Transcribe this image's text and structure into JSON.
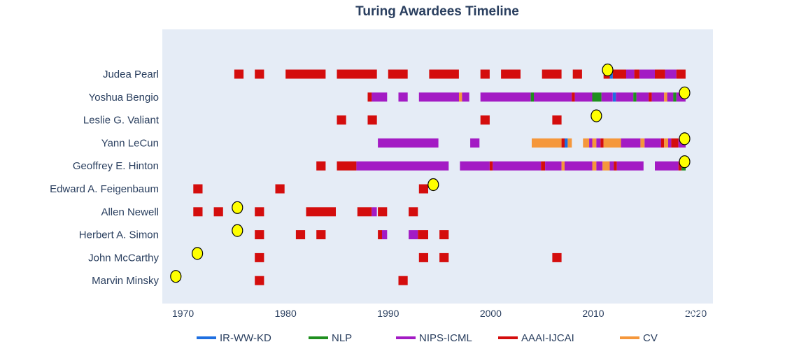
{
  "chart_data": {
    "type": "timeline",
    "title": "Turing Awardees Timeline",
    "xlim": [
      1968,
      2023
    ],
    "x_ticks": [
      "1970",
      "1980",
      "1990",
      "2000",
      "2010",
      "2020"
    ],
    "grid": false,
    "legend_position": "bottom",
    "colors": {
      "IR-WW-KD": "#1f6fe0",
      "NLP": "#1f8f1f",
      "NIPS-ICML": "#a31bc4",
      "AAAI-IJCAI": "#d40d0d",
      "CV": "#f5973b",
      "award_marker": "#ffff00",
      "plot_bg": "#e5ecf6"
    },
    "legend": [
      "IR-WW-KD",
      "NLP",
      "NIPS-ICML",
      "AAAI-IJCAI",
      "CV"
    ],
    "categories": [
      "Judea Pearl",
      "Yoshua Bengio",
      "Leslie G. Valiant",
      "Yann LeCun",
      "Geoffrey E. Hinton",
      "Edward A. Feigenbaum",
      "Allen Newell",
      "Herbert A. Simon",
      "John McCarthy",
      "Marvin Minsky"
    ],
    "award_years": [
      2011.4,
      2018.9,
      2010.3,
      2018.9,
      2018.9,
      1994.4,
      1975.3,
      1975.3,
      1971.4,
      1969.3
    ],
    "segments": [
      [
        [
          1975.0,
          1975.9,
          "AAAI-IJCAI"
        ],
        [
          1977.0,
          1977.9,
          "AAAI-IJCAI"
        ],
        [
          1980.0,
          1983.9,
          "AAAI-IJCAI"
        ],
        [
          1985.0,
          1988.9,
          "AAAI-IJCAI"
        ],
        [
          1990.0,
          1991.9,
          "AAAI-IJCAI"
        ],
        [
          1994.0,
          1996.9,
          "AAAI-IJCAI"
        ],
        [
          1999.0,
          1999.9,
          "AAAI-IJCAI"
        ],
        [
          2001.0,
          2002.9,
          "AAAI-IJCAI"
        ],
        [
          2005.0,
          2006.9,
          "AAAI-IJCAI"
        ],
        [
          2008.0,
          2008.9,
          "AAAI-IJCAI"
        ],
        [
          2011.0,
          2011.6,
          "AAAI-IJCAI"
        ],
        [
          2011.6,
          2011.9,
          "IR-WW-KD"
        ],
        [
          2011.9,
          2013.2,
          "AAAI-IJCAI"
        ],
        [
          2013.2,
          2014.0,
          "NIPS-ICML"
        ],
        [
          2014.0,
          2014.5,
          "AAAI-IJCAI"
        ],
        [
          2014.5,
          2016.0,
          "NIPS-ICML"
        ],
        [
          2016.0,
          2017.0,
          "AAAI-IJCAI"
        ],
        [
          2017.0,
          2018.1,
          "NIPS-ICML"
        ],
        [
          2018.1,
          2019.0,
          "AAAI-IJCAI"
        ]
      ],
      [
        [
          1988.0,
          1988.4,
          "AAAI-IJCAI"
        ],
        [
          1988.4,
          1989.9,
          "NIPS-ICML"
        ],
        [
          1991.0,
          1991.9,
          "NIPS-ICML"
        ],
        [
          1993.0,
          1996.9,
          "NIPS-ICML"
        ],
        [
          1996.9,
          1997.2,
          "CV"
        ],
        [
          1997.2,
          1997.9,
          "NIPS-ICML"
        ],
        [
          1999.0,
          2003.9,
          "NIPS-ICML"
        ],
        [
          2003.9,
          2004.2,
          "NLP"
        ],
        [
          2004.2,
          2007.9,
          "NIPS-ICML"
        ],
        [
          2007.9,
          2008.2,
          "AAAI-IJCAI"
        ],
        [
          2008.2,
          2009.9,
          "NIPS-ICML"
        ],
        [
          2009.9,
          2010.8,
          "NLP"
        ],
        [
          2010.8,
          2011.9,
          "NIPS-ICML"
        ],
        [
          2011.9,
          2012.2,
          "IR-WW-KD"
        ],
        [
          2012.2,
          2013.9,
          "NIPS-ICML"
        ],
        [
          2013.9,
          2014.2,
          "NLP"
        ],
        [
          2014.2,
          2015.4,
          "NIPS-ICML"
        ],
        [
          2015.4,
          2015.7,
          "AAAI-IJCAI"
        ],
        [
          2015.7,
          2016.9,
          "NIPS-ICML"
        ],
        [
          2016.9,
          2017.2,
          "CV"
        ],
        [
          2017.2,
          2017.8,
          "NIPS-ICML"
        ],
        [
          2017.8,
          2018.1,
          "NLP"
        ],
        [
          2018.1,
          2019.0,
          "NIPS-ICML"
        ]
      ],
      [
        [
          1985.0,
          1985.9,
          "AAAI-IJCAI"
        ],
        [
          1988.0,
          1988.9,
          "AAAI-IJCAI"
        ],
        [
          1999.0,
          1999.9,
          "AAAI-IJCAI"
        ],
        [
          2006.0,
          2006.9,
          "AAAI-IJCAI"
        ]
      ],
      [
        [
          1989.0,
          1994.9,
          "NIPS-ICML"
        ],
        [
          1998.0,
          1998.9,
          "NIPS-ICML"
        ],
        [
          2004.0,
          2006.9,
          "CV"
        ],
        [
          2006.9,
          2007.2,
          "AAAI-IJCAI"
        ],
        [
          2007.2,
          2007.5,
          "IR-WW-KD"
        ],
        [
          2007.5,
          2007.9,
          "CV"
        ],
        [
          2009.0,
          2009.6,
          "CV"
        ],
        [
          2009.6,
          2009.9,
          "NIPS-ICML"
        ],
        [
          2009.9,
          2010.3,
          "CV"
        ],
        [
          2010.3,
          2010.7,
          "NIPS-ICML"
        ],
        [
          2010.7,
          2011.0,
          "AAAI-IJCAI"
        ],
        [
          2011.0,
          2012.7,
          "CV"
        ],
        [
          2012.7,
          2013.1,
          "NIPS-ICML"
        ],
        [
          2013.1,
          2014.6,
          "NIPS-ICML"
        ],
        [
          2014.6,
          2015.0,
          "CV"
        ],
        [
          2015.0,
          2016.6,
          "NIPS-ICML"
        ],
        [
          2016.6,
          2016.9,
          "AAAI-IJCAI"
        ],
        [
          2016.9,
          2017.3,
          "CV"
        ],
        [
          2017.3,
          2017.6,
          "NIPS-ICML"
        ],
        [
          2017.6,
          2018.3,
          "AAAI-IJCAI"
        ],
        [
          2018.3,
          2019.0,
          "NIPS-ICML"
        ]
      ],
      [
        [
          1983.0,
          1983.9,
          "AAAI-IJCAI"
        ],
        [
          1985.0,
          1986.9,
          "AAAI-IJCAI"
        ],
        [
          1986.9,
          1995.9,
          "NIPS-ICML"
        ],
        [
          1997.0,
          1999.9,
          "NIPS-ICML"
        ],
        [
          1999.9,
          2000.2,
          "AAAI-IJCAI"
        ],
        [
          2000.2,
          2004.9,
          "NIPS-ICML"
        ],
        [
          2004.9,
          2005.3,
          "AAAI-IJCAI"
        ],
        [
          2005.3,
          2006.9,
          "NIPS-ICML"
        ],
        [
          2006.9,
          2007.2,
          "CV"
        ],
        [
          2007.2,
          2009.9,
          "NIPS-ICML"
        ],
        [
          2009.9,
          2010.3,
          "CV"
        ],
        [
          2010.3,
          2010.9,
          "NIPS-ICML"
        ],
        [
          2010.9,
          2011.6,
          "CV"
        ],
        [
          2011.6,
          2012.0,
          "NIPS-ICML"
        ],
        [
          2012.0,
          2012.3,
          "AAAI-IJCAI"
        ],
        [
          2012.3,
          2014.9,
          "NIPS-ICML"
        ],
        [
          2016.0,
          2018.3,
          "NIPS-ICML"
        ],
        [
          2018.3,
          2018.6,
          "AAAI-IJCAI"
        ],
        [
          2018.6,
          2019.0,
          "NLP"
        ]
      ],
      [
        [
          1971.0,
          1971.9,
          "AAAI-IJCAI"
        ],
        [
          1979.0,
          1979.9,
          "AAAI-IJCAI"
        ],
        [
          1993.0,
          1993.9,
          "AAAI-IJCAI"
        ]
      ],
      [
        [
          1971.0,
          1971.9,
          "AAAI-IJCAI"
        ],
        [
          1973.0,
          1973.9,
          "AAAI-IJCAI"
        ],
        [
          1977.0,
          1977.9,
          "AAAI-IJCAI"
        ],
        [
          1982.0,
          1984.9,
          "AAAI-IJCAI"
        ],
        [
          1987.0,
          1988.4,
          "AAAI-IJCAI"
        ],
        [
          1988.4,
          1988.9,
          "NIPS-ICML"
        ],
        [
          1989.0,
          1989.9,
          "AAAI-IJCAI"
        ],
        [
          1992.0,
          1992.9,
          "AAAI-IJCAI"
        ]
      ],
      [
        [
          1977.0,
          1977.9,
          "AAAI-IJCAI"
        ],
        [
          1981.0,
          1981.9,
          "AAAI-IJCAI"
        ],
        [
          1983.0,
          1983.9,
          "AAAI-IJCAI"
        ],
        [
          1989.0,
          1989.4,
          "AAAI-IJCAI"
        ],
        [
          1989.4,
          1989.9,
          "NIPS-ICML"
        ],
        [
          1992.0,
          1992.9,
          "NIPS-ICML"
        ],
        [
          1992.9,
          1993.9,
          "AAAI-IJCAI"
        ],
        [
          1995.0,
          1995.9,
          "AAAI-IJCAI"
        ]
      ],
      [
        [
          1977.0,
          1977.9,
          "AAAI-IJCAI"
        ],
        [
          1993.0,
          1993.9,
          "AAAI-IJCAI"
        ],
        [
          1995.0,
          1995.9,
          "AAAI-IJCAI"
        ],
        [
          2006.0,
          2006.9,
          "AAAI-IJCAI"
        ]
      ],
      [
        [
          1977.0,
          1977.9,
          "AAAI-IJCAI"
        ],
        [
          1991.0,
          1991.9,
          "AAAI-IJCAI"
        ]
      ]
    ]
  },
  "watermark": "知乎 @LiteAI"
}
